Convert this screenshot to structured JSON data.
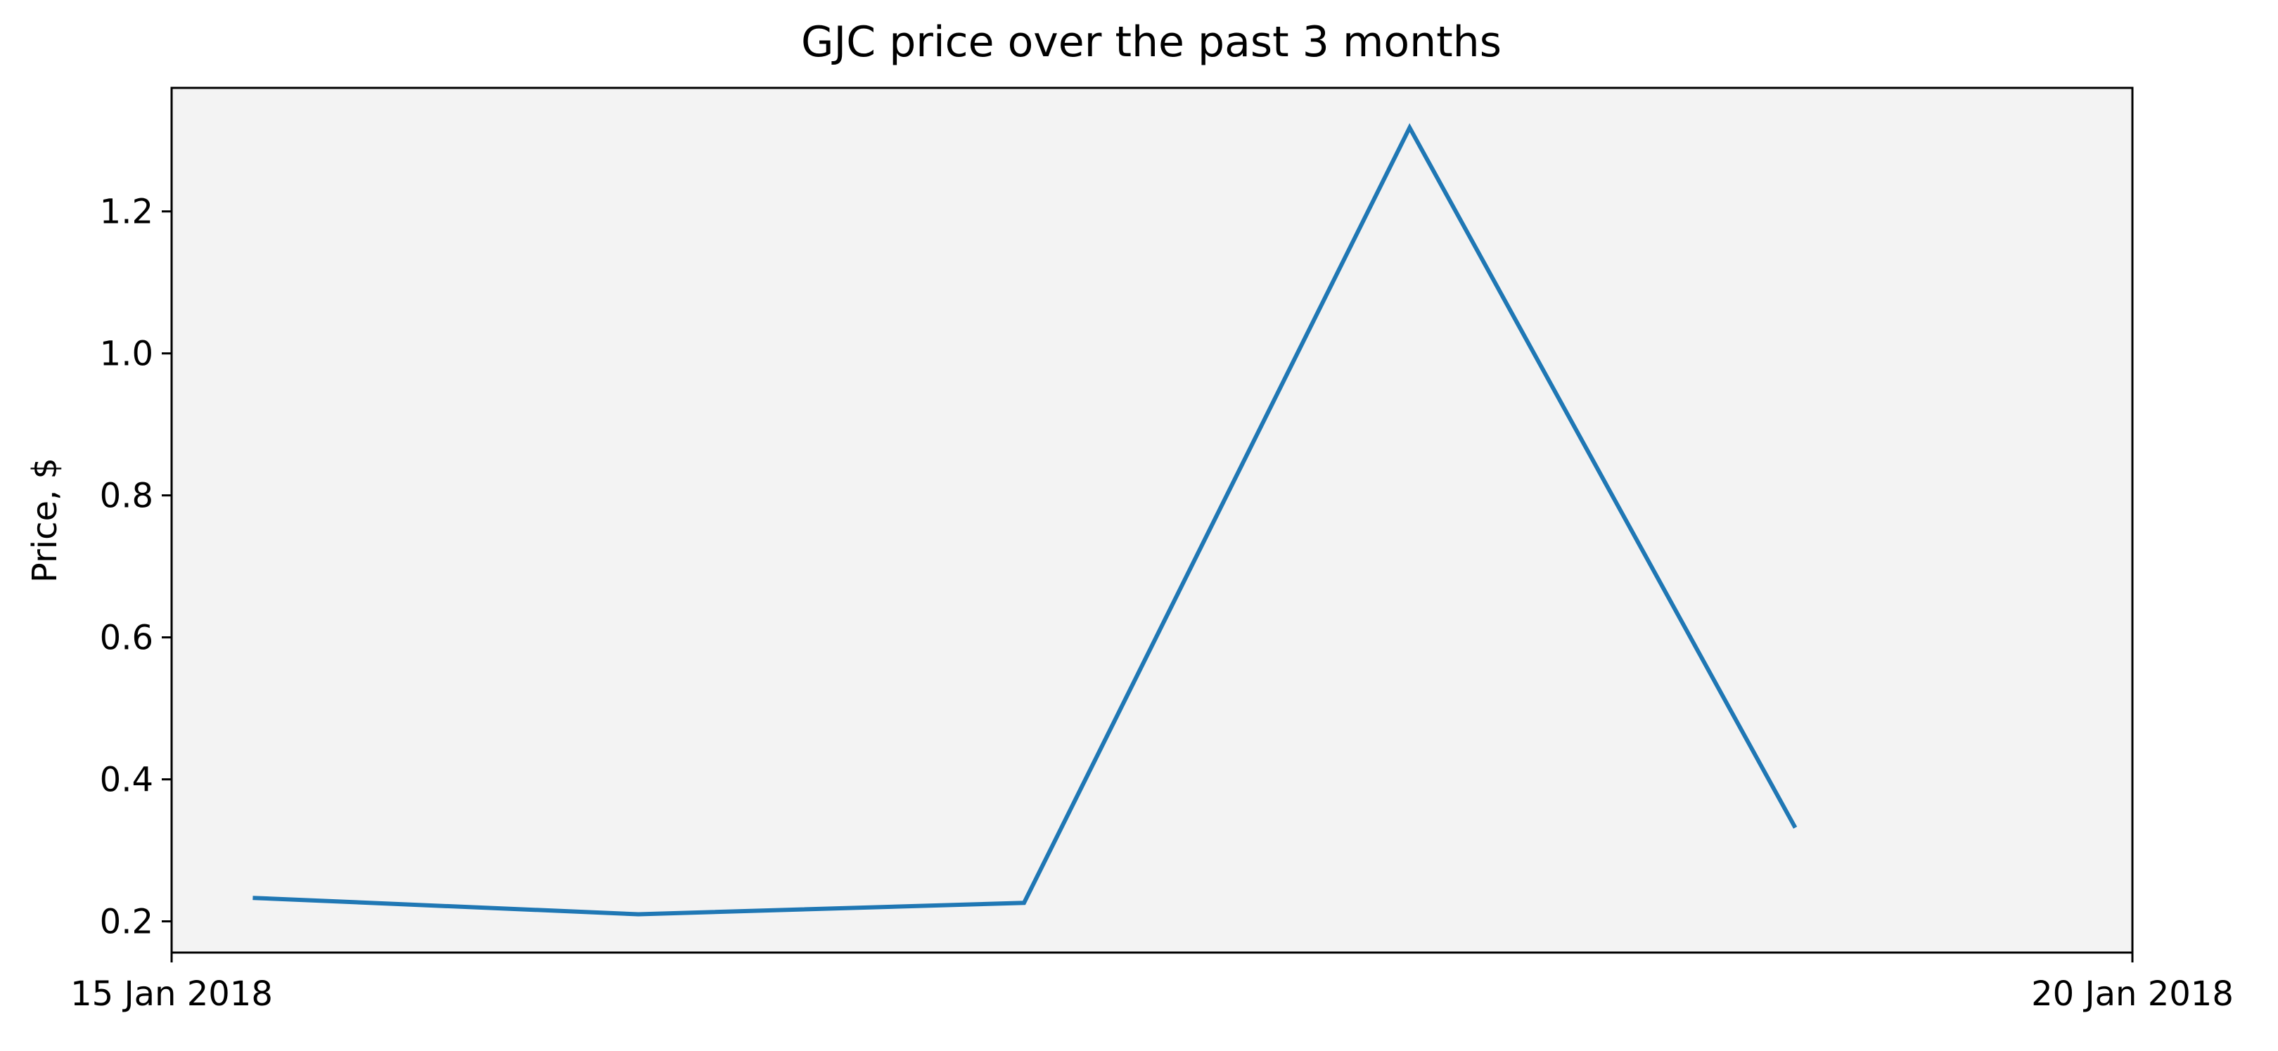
{
  "colors": {
    "plot_background": "#f3f3f3",
    "series_line": "#1f77b4",
    "axis": "#000000"
  },
  "chart_data": {
    "type": "line",
    "title": "GJC price over the past 3 months",
    "xlabel": "",
    "ylabel": "Price, $",
    "x": [
      "2018-01-15 04:58",
      "2018-01-16 04:34",
      "2018-01-17 04:10",
      "2018-01-18 03:46",
      "2018-01-19 03:22"
    ],
    "series": [
      {
        "values": [
          0.233,
          0.21,
          0.226,
          1.318,
          0.332
        ]
      }
    ],
    "xlim": [
      "2018-01-15",
      "2018-01-20"
    ],
    "ylim": [
      0.156,
      1.374
    ],
    "x_ticks": [
      {
        "date": "2018-01-15",
        "label": "15 Jan 2018"
      },
      {
        "date": "2018-01-20",
        "label": "20 Jan 2018"
      }
    ],
    "y_ticks": [
      {
        "value": 0.2,
        "label": "0.2"
      },
      {
        "value": 0.4,
        "label": "0.4"
      },
      {
        "value": 0.6,
        "label": "0.6"
      },
      {
        "value": 0.8,
        "label": "0.8"
      },
      {
        "value": 1.0,
        "label": "1.0"
      },
      {
        "value": 1.2,
        "label": "1.2"
      }
    ],
    "grid": false,
    "legend": "none"
  }
}
